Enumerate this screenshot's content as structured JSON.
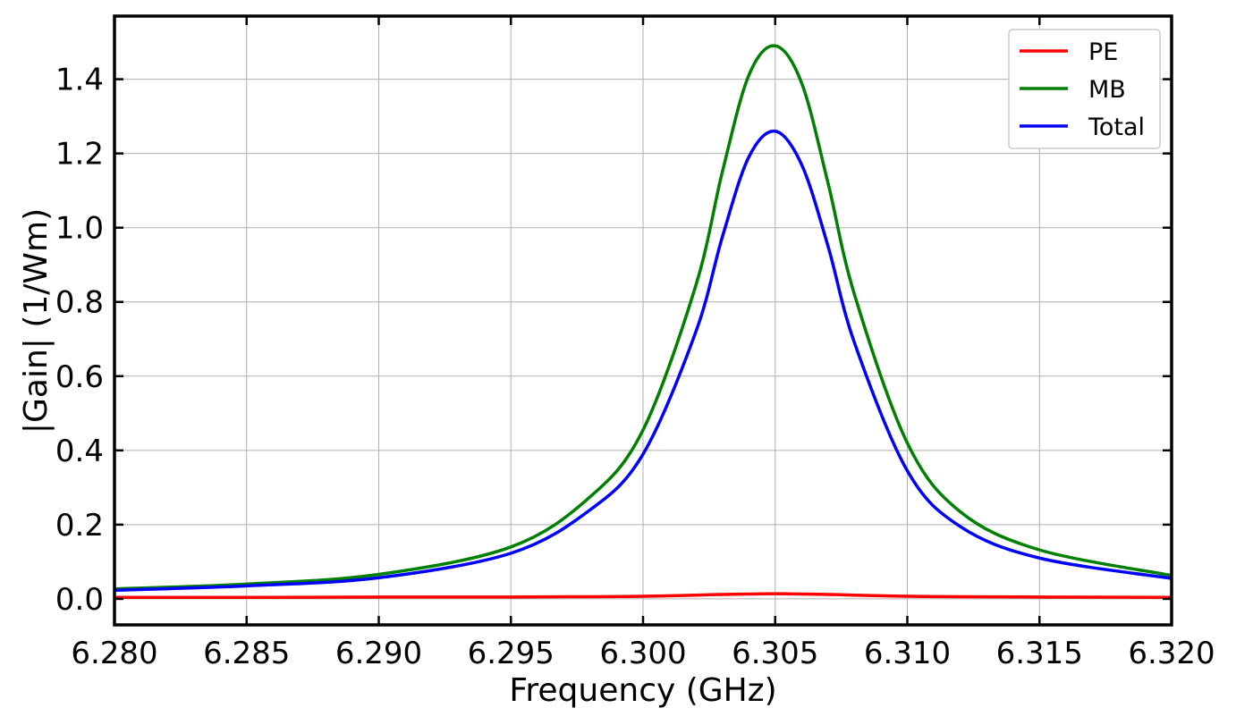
{
  "chart_data": {
    "type": "line",
    "title": "",
    "xlabel": "Frequency (GHz)",
    "ylabel": "|Gain| (1/Wm)",
    "xlim": [
      6.28,
      6.32
    ],
    "ylim": [
      -0.07,
      1.57
    ],
    "xticks": [
      6.28,
      6.285,
      6.29,
      6.295,
      6.3,
      6.305,
      6.31,
      6.315,
      6.32
    ],
    "xtick_labels": [
      "6.280",
      "6.285",
      "6.290",
      "6.295",
      "6.300",
      "6.305",
      "6.310",
      "6.315",
      "6.320"
    ],
    "yticks": [
      0.0,
      0.2,
      0.4,
      0.6,
      0.8,
      1.0,
      1.2,
      1.4
    ],
    "ytick_labels": [
      "0.0",
      "0.2",
      "0.4",
      "0.6",
      "0.8",
      "1.0",
      "1.2",
      "1.4"
    ],
    "grid": true,
    "legend_position": "top-right",
    "x": [
      6.28,
      6.285,
      6.29,
      6.295,
      6.298,
      6.3,
      6.302,
      6.303,
      6.304,
      6.305,
      6.306,
      6.307,
      6.308,
      6.31,
      6.312,
      6.315,
      6.32
    ],
    "series": [
      {
        "name": "PE",
        "color": "#ff0000",
        "values": [
          0.004,
          0.004,
          0.005,
          0.005,
          0.006,
          0.007,
          0.01,
          0.012,
          0.013,
          0.014,
          0.013,
          0.012,
          0.01,
          0.007,
          0.006,
          0.005,
          0.004
        ]
      },
      {
        "name": "MB",
        "color": "#008000",
        "values": [
          0.027,
          0.04,
          0.066,
          0.14,
          0.275,
          0.455,
          0.845,
          1.15,
          1.41,
          1.49,
          1.39,
          1.12,
          0.82,
          0.42,
          0.235,
          0.132,
          0.063
        ]
      },
      {
        "name": "Total",
        "color": "#0000ff",
        "values": [
          0.023,
          0.035,
          0.057,
          0.123,
          0.24,
          0.39,
          0.72,
          0.975,
          1.19,
          1.26,
          1.17,
          0.95,
          0.69,
          0.345,
          0.195,
          0.11,
          0.055
        ]
      }
    ]
  }
}
